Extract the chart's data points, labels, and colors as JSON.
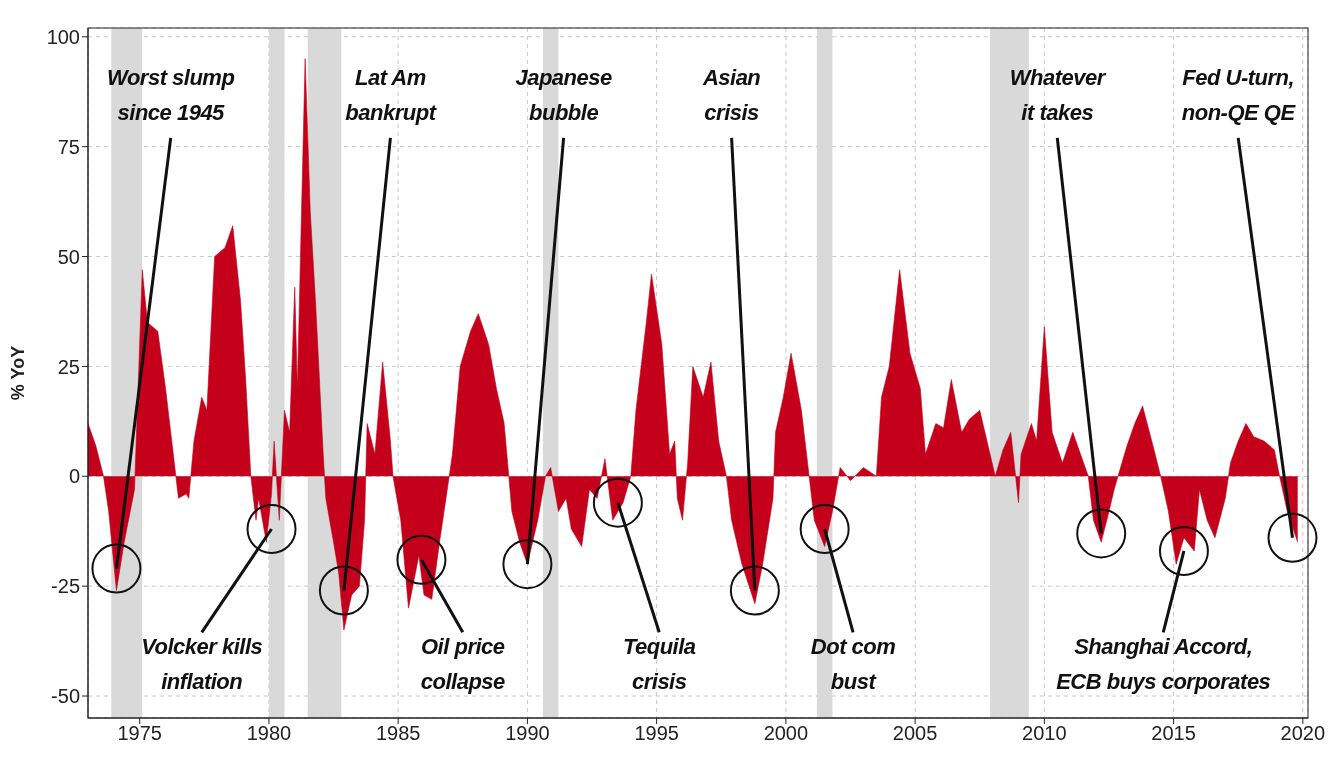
{
  "chart_data": {
    "type": "area",
    "ylabel": "% YoY",
    "xlim": [
      1973,
      2020.2
    ],
    "ylim": [
      -55,
      102
    ],
    "xticks": [
      1975,
      1980,
      1985,
      1990,
      1995,
      2000,
      2005,
      2010,
      2015,
      2020
    ],
    "yticks": [
      -50,
      -25,
      0,
      25,
      50,
      75,
      100
    ],
    "grid": true,
    "x": [
      1973.0,
      1973.3,
      1973.6,
      1973.8,
      1974.1,
      1974.4,
      1974.8,
      1975.1,
      1975.3,
      1975.7,
      1976.0,
      1976.3,
      1976.5,
      1976.8,
      1976.9,
      1977.1,
      1977.4,
      1977.6,
      1977.9,
      1978.3,
      1978.6,
      1978.9,
      1979.1,
      1979.3,
      1979.5,
      1979.6,
      1979.9,
      1980.1,
      1980.2,
      1980.4,
      1980.6,
      1980.8,
      1981.0,
      1981.1,
      1981.4,
      1981.6,
      1981.8,
      1982.1,
      1982.2,
      1982.5,
      1982.7,
      1982.9,
      1983.2,
      1983.5,
      1983.7,
      1983.8,
      1984.1,
      1984.4,
      1984.7,
      1984.8,
      1985.1,
      1985.4,
      1985.8,
      1986.0,
      1986.3,
      1986.6,
      1986.9,
      1987.1,
      1987.4,
      1987.8,
      1988.1,
      1988.5,
      1988.8,
      1989.1,
      1989.4,
      1989.7,
      1990.0,
      1990.4,
      1990.7,
      1990.9,
      1991.2,
      1991.5,
      1991.7,
      1992.1,
      1992.4,
      1992.7,
      1993.0,
      1993.3,
      1993.7,
      1994.0,
      1994.2,
      1994.6,
      1994.8,
      1995.2,
      1995.5,
      1995.7,
      1995.8,
      1996.0,
      1996.2,
      1996.4,
      1996.8,
      1997.1,
      1997.4,
      1997.7,
      1997.9,
      1998.3,
      1998.8,
      1999.1,
      1999.5,
      1999.6,
      1999.9,
      2000.2,
      2000.6,
      2000.9,
      2001.1,
      2001.5,
      2001.8,
      2002.1,
      2002.5,
      2003.0,
      2003.5,
      2003.7,
      2004.0,
      2004.4,
      2004.8,
      2005.2,
      2005.4,
      2005.8,
      2006.1,
      2006.4,
      2006.8,
      2007.1,
      2007.5,
      2007.9,
      2008.1,
      2008.4,
      2008.7,
      2009.0,
      2009.1,
      2009.5,
      2009.7,
      2010.0,
      2010.3,
      2010.7,
      2011.1,
      2011.4,
      2011.7,
      2011.9,
      2012.2,
      2012.5,
      2012.7,
      2013.0,
      2013.2,
      2013.5,
      2013.8,
      2014.2,
      2014.5,
      2014.8,
      2015.1,
      2015.4,
      2015.8,
      2016.0,
      2016.3,
      2016.6,
      2017.0,
      2017.2,
      2017.5,
      2017.8,
      2018.1,
      2018.5,
      2018.9,
      2019.1,
      2019.4,
      2019.8
    ],
    "series": [
      {
        "color": "#c4001a",
        "values": [
          12,
          7,
          0,
          -8,
          -26,
          -15,
          -3,
          47,
          35,
          33,
          20,
          5,
          -5,
          -4,
          -5,
          8,
          18,
          15,
          50,
          52,
          57,
          40,
          22,
          0,
          -10,
          -5,
          -15,
          -4,
          8,
          -10,
          15,
          10,
          43,
          20,
          95,
          60,
          40,
          5,
          -5,
          -15,
          -22,
          -35,
          -27,
          -25,
          -10,
          12,
          5,
          26,
          8,
          0,
          -10,
          -30,
          -18,
          -27,
          -28,
          -15,
          -3,
          5,
          25,
          33,
          37,
          30,
          20,
          12,
          -8,
          -15,
          -20,
          -10,
          0,
          2,
          -8,
          -5,
          -12,
          -16,
          -3,
          -5,
          4,
          -10,
          -6,
          0,
          15,
          35,
          46,
          30,
          5,
          8,
          -5,
          -10,
          3,
          25,
          18,
          26,
          8,
          0,
          -10,
          -20,
          -29,
          -20,
          -5,
          10,
          18,
          28,
          15,
          0,
          -10,
          -16,
          -8,
          2,
          -1,
          2,
          0,
          18,
          25,
          47,
          28,
          20,
          5,
          12,
          11,
          22,
          10,
          13,
          15,
          5,
          0,
          6,
          10,
          -6,
          5,
          12,
          8,
          34,
          10,
          3,
          10,
          5,
          0,
          -10,
          -15,
          -8,
          -3,
          3,
          7,
          12,
          16,
          7,
          0,
          -8,
          -20,
          -14,
          -17,
          -3,
          -10,
          -14,
          -5,
          3,
          8,
          12,
          9,
          8,
          6,
          0,
          -8,
          -15
        ]
      }
    ],
    "bands": [
      {
        "axis": "x",
        "from": 1973.9,
        "to": 1975.1,
        "color": "#d9d9d9"
      },
      {
        "axis": "x",
        "from": 1980.0,
        "to": 1980.6,
        "color": "#d9d9d9"
      },
      {
        "axis": "x",
        "from": 1981.5,
        "to": 1982.8,
        "color": "#d9d9d9"
      },
      {
        "axis": "x",
        "from": 1990.6,
        "to": 1991.2,
        "color": "#d9d9d9"
      },
      {
        "axis": "x",
        "from": 2001.2,
        "to": 2001.8,
        "color": "#d9d9d9"
      },
      {
        "axis": "x",
        "from": 2007.9,
        "to": 2009.4,
        "color": "#d9d9d9"
      }
    ],
    "annotations": [
      {
        "text": "Worst slump\nsince 1945",
        "x": 1974.1,
        "y": -21
      },
      {
        "text": "Volcker kills\ninflation",
        "x": 1980.1,
        "y": -12
      },
      {
        "text": "Lat Am\nbankrupt",
        "x": 1982.9,
        "y": -26
      },
      {
        "text": "Oil price\ncollapse",
        "x": 1985.9,
        "y": -19
      },
      {
        "text": "Japanese\nbubble",
        "x": 1990.0,
        "y": -20
      },
      {
        "text": "Tequila\ncrisis",
        "x": 1993.5,
        "y": -6
      },
      {
        "text": "Asian\ncrisis",
        "x": 1998.8,
        "y": -26
      },
      {
        "text": "Dot com\nbust",
        "x": 2001.5,
        "y": -12
      },
      {
        "text": "Whatever\nit takes",
        "x": 2012.2,
        "y": -13
      },
      {
        "text": "Shanghai Accord,\nECB buys corporates",
        "x": 2015.4,
        "y": -17
      },
      {
        "text": "Fed U-turn,\nnon-QE QE",
        "x": 2019.6,
        "y": -14
      }
    ]
  }
}
